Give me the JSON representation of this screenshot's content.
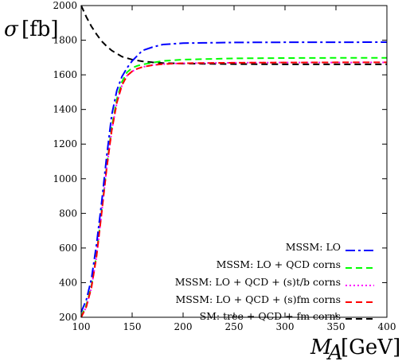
{
  "chart_data": {
    "type": "line",
    "title": "",
    "ylabel_symbol": "σ",
    "ylabel_unit": "[fb]",
    "xlabel_symbol": "M",
    "xlabel_subscript": "A",
    "xlabel_unit": "[GeV]",
    "xlim": [
      100,
      400
    ],
    "ylim": [
      200,
      2000
    ],
    "x_ticks": [
      100,
      150,
      200,
      250,
      300,
      350,
      400
    ],
    "y_ticks": [
      200,
      400,
      600,
      800,
      1000,
      1200,
      1400,
      1600,
      1800,
      2000
    ],
    "grid": false,
    "legend_position": "bottom-right",
    "series": [
      {
        "name": "MSSM: LO",
        "color": "#0000ff",
        "dash": "dashdot",
        "x": [
          100,
          105,
          110,
          115,
          120,
          125,
          130,
          135,
          140,
          145,
          150,
          155,
          160,
          170,
          180,
          200,
          250,
          300,
          350,
          400
        ],
        "y": [
          230,
          300,
          420,
          620,
          860,
          1130,
          1370,
          1510,
          1590,
          1640,
          1680,
          1710,
          1740,
          1760,
          1775,
          1783,
          1787,
          1788,
          1788,
          1789
        ]
      },
      {
        "name": "MSSM: LO + QCD corns",
        "color": "#00ff00",
        "dash": "dashed",
        "x": [
          100,
          105,
          110,
          115,
          120,
          125,
          130,
          135,
          140,
          145,
          150,
          155,
          160,
          170,
          180,
          200,
          250,
          300,
          350,
          400
        ],
        "y": [
          205,
          270,
          380,
          560,
          810,
          1070,
          1300,
          1460,
          1560,
          1615,
          1640,
          1652,
          1660,
          1670,
          1680,
          1688,
          1695,
          1697,
          1698,
          1698
        ]
      },
      {
        "name": "MSSM: LO + QCD + (s)t/b corns",
        "color": "#ff00ff",
        "dash": "dotted",
        "x": [
          100,
          105,
          110,
          115,
          120,
          125,
          130,
          135,
          140,
          145,
          150,
          155,
          160,
          170,
          180,
          200,
          250,
          300,
          350,
          400
        ],
        "y": [
          200,
          260,
          370,
          550,
          800,
          1060,
          1280,
          1440,
          1540,
          1595,
          1620,
          1635,
          1645,
          1656,
          1662,
          1667,
          1670,
          1671,
          1671,
          1672
        ]
      },
      {
        "name": "MSSM: LO + QCD + (s)fm corns",
        "color": "#ff0000",
        "dash": "dashed",
        "x": [
          100,
          105,
          110,
          115,
          120,
          125,
          130,
          135,
          140,
          145,
          150,
          155,
          160,
          170,
          180,
          200,
          250,
          300,
          350,
          400
        ],
        "y": [
          200,
          260,
          370,
          550,
          800,
          1060,
          1280,
          1440,
          1540,
          1595,
          1620,
          1635,
          1645,
          1656,
          1662,
          1667,
          1670,
          1671,
          1672,
          1672
        ]
      },
      {
        "name": "SM: tree + QCD + fm corns",
        "color": "#000000",
        "dash": "dashed",
        "x": [
          100,
          105,
          110,
          115,
          120,
          125,
          130,
          140,
          150,
          160,
          170,
          180,
          200,
          250,
          300,
          350,
          400
        ],
        "y": [
          2000,
          1935,
          1880,
          1835,
          1795,
          1765,
          1740,
          1705,
          1688,
          1678,
          1672,
          1668,
          1665,
          1662,
          1661,
          1661,
          1661
        ]
      }
    ]
  }
}
